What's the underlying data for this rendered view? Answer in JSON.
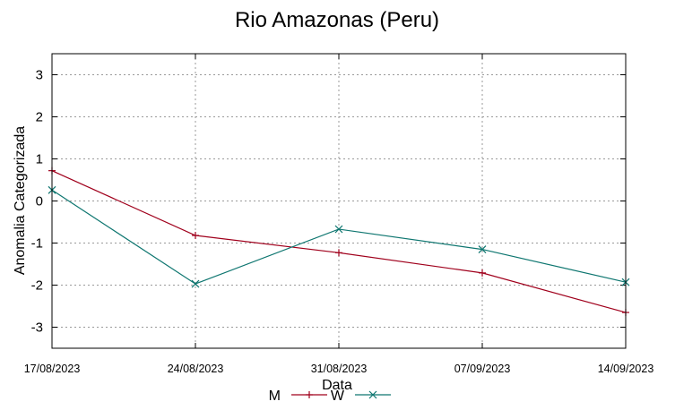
{
  "chart_data": {
    "type": "line",
    "title": "Rio Amazonas (Peru)",
    "xlabel": "Data",
    "ylabel": "Anomalia Categorizada",
    "categories": [
      "17/08/2023",
      "24/08/2023",
      "31/08/2023",
      "07/09/2023",
      "14/09/2023"
    ],
    "ylim": [
      -3.5,
      3.5
    ],
    "yticks": [
      3,
      2,
      1,
      0,
      -1,
      -2,
      -3
    ],
    "ytick_labels": [
      "3",
      "2",
      "1",
      "0",
      "-1",
      "-2",
      "-3"
    ],
    "grid": true,
    "legend_position": "bottom-center",
    "series": [
      {
        "name": "M",
        "color": "#a0001c",
        "marker": "plus",
        "values": [
          0.72,
          -0.82,
          -1.23,
          -1.71,
          -2.65
        ]
      },
      {
        "name": "W",
        "color": "#0e7670",
        "marker": "cross",
        "values": [
          0.26,
          -1.97,
          -0.67,
          -1.15,
          -1.93
        ]
      }
    ]
  }
}
